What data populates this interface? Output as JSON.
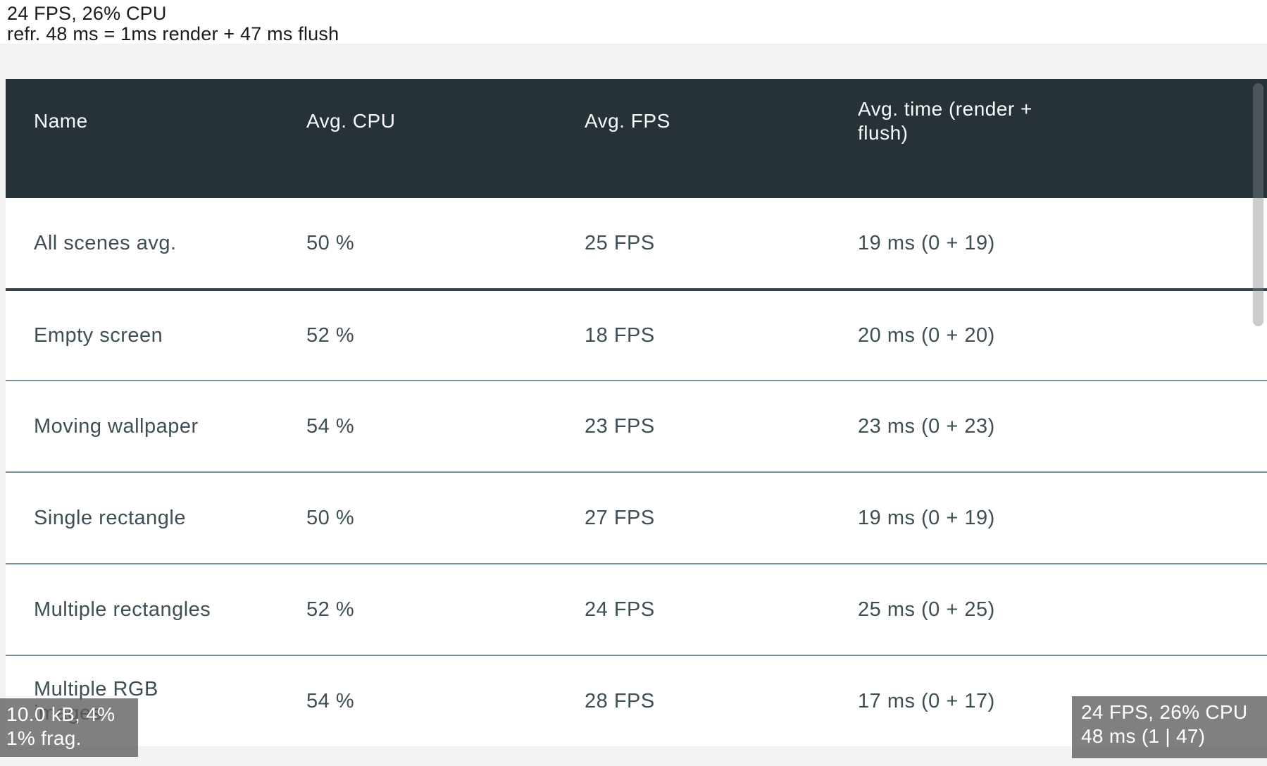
{
  "status_top": {
    "line1": "24 FPS, 26% CPU",
    "line2": "refr. 48 ms = 1ms render + 47 ms flush"
  },
  "table": {
    "columns": [
      {
        "label": "Name"
      },
      {
        "label": "Avg. CPU"
      },
      {
        "label": "Avg. FPS"
      },
      {
        "label": "Avg. time (render +\nflush)"
      }
    ],
    "rows": [
      {
        "name": "All scenes avg.",
        "cpu": "50 %",
        "fps": "25 FPS",
        "time": "19 ms (0 + 19)"
      },
      {
        "name": "Empty screen",
        "cpu": "52 %",
        "fps": "18 FPS",
        "time": "20 ms (0 + 20)"
      },
      {
        "name": "Moving wallpaper",
        "cpu": "54 %",
        "fps": "23 FPS",
        "time": "23 ms (0 + 23)"
      },
      {
        "name": "Single rectangle",
        "cpu": "50 %",
        "fps": "27 FPS",
        "time": "19 ms (0 + 19)"
      },
      {
        "name": "Multiple rectangles",
        "cpu": "52 %",
        "fps": "24 FPS",
        "time": "25 ms (0 + 25)"
      },
      {
        "name": "Multiple RGB\nimages",
        "cpu": "54 %",
        "fps": "28 FPS",
        "time": "17 ms (0 + 17)"
      }
    ]
  },
  "overlay_bottom_left": {
    "line1": "10.0 kB, 4%",
    "line2": "1% frag."
  },
  "overlay_bottom_right": {
    "line1": "24 FPS, 26% CPU",
    "line2": "48 ms (1 | 47)"
  },
  "colors": {
    "header_bg": "#263238",
    "header_text": "#fafafa",
    "row_text": "#3d4e55",
    "separator_thin": "#7a8f99",
    "separator_thick": "#32424a",
    "page_bg": "#f2f2f3",
    "overlay_bg": "rgba(92,92,92,0.78)"
  }
}
